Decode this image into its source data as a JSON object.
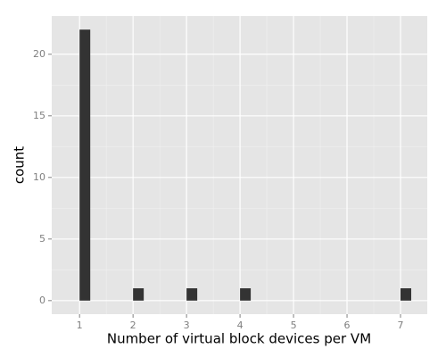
{
  "chart_data": {
    "type": "histogram",
    "x_label": "Number of virtual block devices per VM",
    "y_label": "count",
    "bins": [
      1,
      1.2,
      1.4,
      1.6,
      1.8,
      2,
      2.2,
      2.4,
      2.6,
      2.8,
      3,
      3.2,
      3.4,
      3.6,
      3.8,
      4,
      4.2,
      4.4,
      4.6,
      4.8,
      5,
      5.2,
      5.4,
      5.6,
      5.8,
      6,
      6.2,
      6.4,
      6.6,
      6.8,
      7,
      7.2
    ],
    "counts": [
      22,
      0,
      0,
      0,
      0,
      1,
      0,
      0,
      0,
      0,
      1,
      0,
      0,
      0,
      0,
      1,
      0,
      0,
      0,
      0,
      0,
      0,
      0,
      0,
      0,
      0,
      0,
      0,
      0,
      0,
      1
    ],
    "color": "#333333",
    "xlim": [
      0.48,
      7.5
    ],
    "xticks": [
      1,
      2,
      3,
      4,
      5,
      6,
      7
    ],
    "ylim": [
      -1.1,
      23.1
    ],
    "yticks": [
      0,
      5,
      10,
      15,
      20
    ],
    "grid": true
  }
}
